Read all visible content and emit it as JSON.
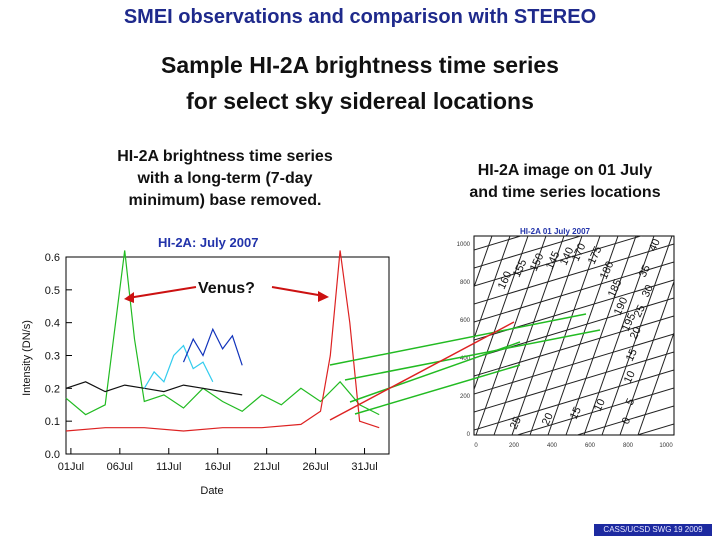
{
  "slide": {
    "title": "SMEI observations and comparison with STEREO",
    "subtitle_line1": "Sample HI-2A brightness time series",
    "subtitle_line2": "for select sky sidereal locations",
    "left_caption": [
      "HI-2A brightness time series",
      "with a long-term (7-day",
      "minimum) base removed."
    ],
    "right_caption": [
      "HI-2A image on 01 July",
      "and time series locations"
    ],
    "annotation": "Venus?",
    "footer": "CASS/UCSD SWG 19 2009"
  },
  "chart_data": {
    "type": "line",
    "title": "HI-2A: July 2007",
    "xlabel": "Date",
    "ylabel": "Intensity (DN/s)",
    "categories": [
      "01Jul",
      "06Jul",
      "11Jul",
      "16Jul",
      "21Jul",
      "26Jul",
      "31Jul"
    ],
    "yticks": [
      "0.0",
      "0.1",
      "0.2",
      "0.3",
      "0.4",
      "0.5",
      "0.6"
    ],
    "ylim": [
      0,
      0.6
    ],
    "xlim": [
      0,
      33
    ],
    "series": [
      {
        "name": "green",
        "color": "#22bb22",
        "values": [
          [
            0,
            0.17
          ],
          [
            2,
            0.12
          ],
          [
            4,
            0.15
          ],
          [
            6,
            0.62
          ],
          [
            7,
            0.35
          ],
          [
            8,
            0.16
          ],
          [
            10,
            0.18
          ],
          [
            12,
            0.14
          ],
          [
            14,
            0.2
          ],
          [
            16,
            0.16
          ],
          [
            18,
            0.13
          ],
          [
            20,
            0.18
          ],
          [
            22,
            0.15
          ],
          [
            24,
            0.2
          ],
          [
            26,
            0.16
          ],
          [
            28,
            0.22
          ],
          [
            30,
            0.15
          ],
          [
            32,
            0.12
          ]
        ]
      },
      {
        "name": "black",
        "color": "#111111",
        "values": [
          [
            0,
            0.2
          ],
          [
            2,
            0.22
          ],
          [
            4,
            0.19
          ],
          [
            6,
            0.21
          ],
          [
            8,
            0.2
          ],
          [
            10,
            0.19
          ],
          [
            12,
            0.21
          ],
          [
            14,
            0.2
          ],
          [
            16,
            0.19
          ],
          [
            18,
            0.18
          ]
        ]
      },
      {
        "name": "cyan",
        "color": "#33ccee",
        "values": [
          [
            8,
            0.2
          ],
          [
            9,
            0.25
          ],
          [
            10,
            0.22
          ],
          [
            11,
            0.3
          ],
          [
            12,
            0.33
          ],
          [
            13,
            0.26
          ],
          [
            14,
            0.28
          ],
          [
            15,
            0.22
          ]
        ]
      },
      {
        "name": "blue",
        "color": "#1133bb",
        "values": [
          [
            12,
            0.28
          ],
          [
            13,
            0.35
          ],
          [
            14,
            0.3
          ],
          [
            15,
            0.38
          ],
          [
            16,
            0.32
          ],
          [
            17,
            0.36
          ],
          [
            18,
            0.27
          ]
        ]
      },
      {
        "name": "red",
        "color": "#dd2222",
        "values": [
          [
            0,
            0.07
          ],
          [
            4,
            0.08
          ],
          [
            8,
            0.08
          ],
          [
            12,
            0.07
          ],
          [
            16,
            0.08
          ],
          [
            20,
            0.08
          ],
          [
            24,
            0.09
          ],
          [
            26,
            0.13
          ],
          [
            27,
            0.3
          ],
          [
            28,
            0.62
          ],
          [
            29,
            0.4
          ],
          [
            30,
            0.1
          ],
          [
            32,
            0.08
          ]
        ]
      }
    ]
  },
  "image_panel": {
    "title": "HI-2A  01 July 2007",
    "yticks": [
      "1000",
      "800",
      "600",
      "400",
      "200",
      "0"
    ],
    "xticks": [
      "0",
      "200",
      "400",
      "600",
      "800",
      "1000"
    ],
    "labels": [
      "40",
      "35",
      "30",
      "25",
      "20",
      "15",
      "10",
      "5",
      "0",
      "160",
      "155",
      "150",
      "145",
      "140",
      "170",
      "175",
      "180",
      "185",
      "190",
      "195",
      "25",
      "20",
      "15",
      "10"
    ]
  }
}
